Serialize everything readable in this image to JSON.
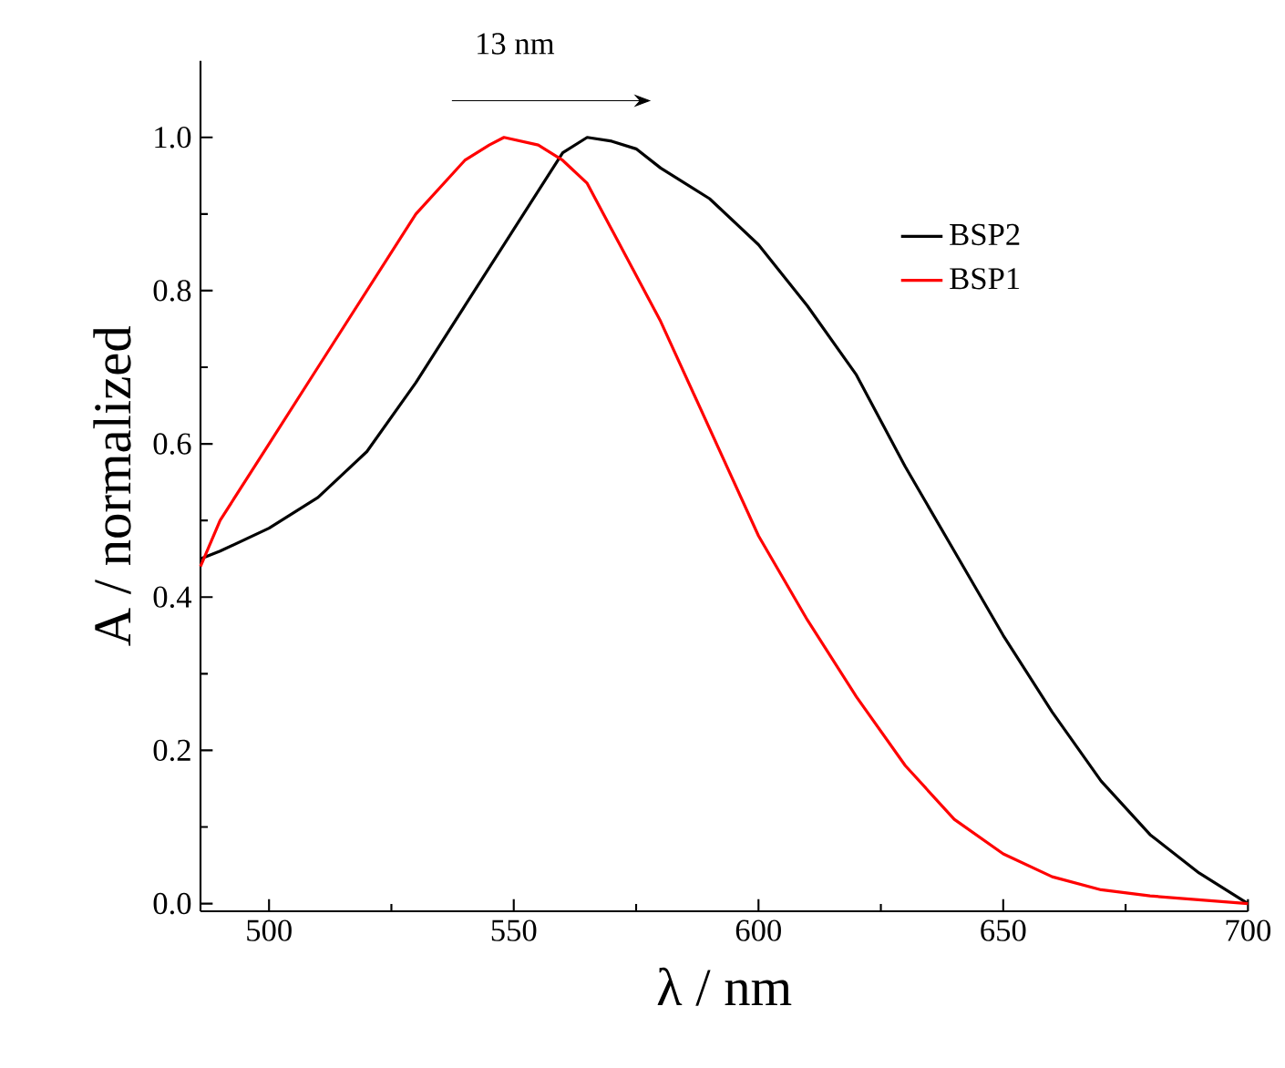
{
  "chart_data": {
    "type": "line",
    "xlabel": "λ / nm",
    "ylabel": "A / normalized",
    "xlim": [
      486,
      700
    ],
    "ylim": [
      -0.01,
      1.1
    ],
    "xticks": [
      500,
      550,
      600,
      650,
      700
    ],
    "yticks": [
      {
        "value": 0,
        "label": "0.0"
      },
      {
        "value": 0.2,
        "label": "0.2"
      },
      {
        "value": 0.4,
        "label": "0.4"
      },
      {
        "value": 0.6,
        "label": "0.6"
      },
      {
        "value": 0.8,
        "label": "0.8"
      },
      {
        "value": 1.0,
        "label": "1.0"
      }
    ],
    "legend": "top right",
    "grid": false,
    "marker": "none",
    "line_style": "solid",
    "annotations": [
      "13 nm"
    ],
    "series": [
      {
        "name": "BSP2",
        "color": "#000000",
        "x": [
          486,
          490,
          500,
          510,
          520,
          530,
          540,
          550,
          555,
          560,
          565,
          570,
          575,
          580,
          590,
          600,
          610,
          620,
          630,
          640,
          650,
          660,
          670,
          680,
          690,
          700
        ],
        "values": [
          0.45,
          0.46,
          0.49,
          0.53,
          0.59,
          0.68,
          0.78,
          0.88,
          0.93,
          0.98,
          1.0,
          0.995,
          0.985,
          0.96,
          0.92,
          0.86,
          0.78,
          0.69,
          0.57,
          0.46,
          0.35,
          0.25,
          0.16,
          0.09,
          0.04,
          0.0
        ]
      },
      {
        "name": "BSP1",
        "color": "#ff0000",
        "x": [
          486,
          490,
          500,
          510,
          520,
          530,
          540,
          545,
          548,
          555,
          560,
          565,
          570,
          580,
          590,
          600,
          610,
          620,
          630,
          640,
          650,
          660,
          670,
          680,
          690,
          700
        ],
        "values": [
          0.44,
          0.5,
          0.6,
          0.7,
          0.8,
          0.9,
          0.97,
          0.99,
          1.0,
          0.99,
          0.97,
          0.94,
          0.88,
          0.76,
          0.62,
          0.48,
          0.37,
          0.27,
          0.18,
          0.11,
          0.065,
          0.035,
          0.018,
          0.01,
          0.005,
          0.0
        ]
      }
    ]
  }
}
